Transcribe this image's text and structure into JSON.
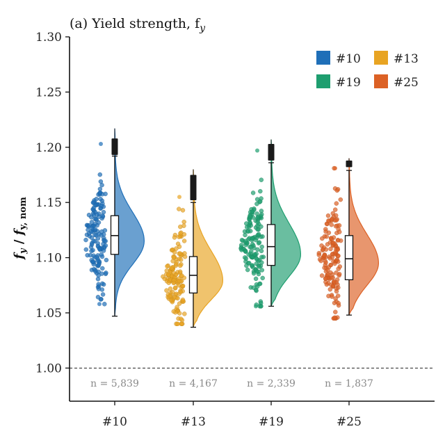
{
  "chart_data": {
    "type": "violin",
    "title": "(a) Yield strength, f",
    "title_sub": "y",
    "ylabel": "f_y / f_y,nom",
    "ylabel_parts": {
      "num": "f",
      "num_sub": "y",
      "sep": " / ",
      "den": "f",
      "den_sub": "y, nom"
    },
    "ylim": [
      0.97,
      1.3
    ],
    "yticks": [
      "1.00",
      "1.05",
      "1.10",
      "1.15",
      "1.20",
      "1.25",
      "1.30"
    ],
    "reference_line": 1.0,
    "grid": false,
    "legend_position": "top-right",
    "categories": [
      "#10",
      "#13",
      "#19",
      "#25"
    ],
    "series": [
      {
        "name": "#10",
        "color": "#1f6fb8",
        "n_label": "n = 5,839",
        "min": 1.047,
        "q1": 1.103,
        "median": 1.12,
        "q3": 1.138,
        "whisker_high": 1.192,
        "max": 1.217,
        "outlier_low": 1.193,
        "outlier_high": 1.208,
        "kde_peak": 1.115,
        "kde_sigma_low": 0.021,
        "kde_sigma_high": 0.026,
        "strip_mean": 1.118,
        "strip_sd": 0.027,
        "strip_min": 1.058,
        "strip_max": 1.203
      },
      {
        "name": "#13",
        "color": "#e8a423",
        "n_label": "n = 4,167",
        "min": 1.037,
        "q1": 1.068,
        "median": 1.084,
        "q3": 1.101,
        "whisker_high": 1.15,
        "max": 1.18,
        "outlier_low": 1.152,
        "outlier_high": 1.175,
        "kde_peak": 1.079,
        "kde_sigma_low": 0.017,
        "kde_sigma_high": 0.027,
        "strip_mean": 1.083,
        "strip_sd": 0.022,
        "strip_min": 1.04,
        "strip_max": 1.155
      },
      {
        "name": "#19",
        "color": "#1e9e6f",
        "n_label": "n = 2,339",
        "min": 1.056,
        "q1": 1.093,
        "median": 1.11,
        "q3": 1.13,
        "whisker_high": 1.186,
        "max": 1.207,
        "outlier_low": 1.188,
        "outlier_high": 1.203,
        "kde_peak": 1.103,
        "kde_sigma_low": 0.02,
        "kde_sigma_high": 0.028,
        "strip_mean": 1.112,
        "strip_sd": 0.026,
        "strip_min": 1.056,
        "strip_max": 1.197
      },
      {
        "name": "#25",
        "color": "#dc6125",
        "n_label": "n = 1,837",
        "min": 1.048,
        "q1": 1.08,
        "median": 1.099,
        "q3": 1.12,
        "whisker_high": 1.179,
        "max": 1.19,
        "outlier_low": 1.182,
        "outlier_high": 1.188,
        "kde_peak": 1.095,
        "kde_sigma_low": 0.02,
        "kde_sigma_high": 0.026,
        "strip_mean": 1.1,
        "strip_sd": 0.026,
        "strip_min": 1.045,
        "strip_max": 1.181
      }
    ]
  }
}
